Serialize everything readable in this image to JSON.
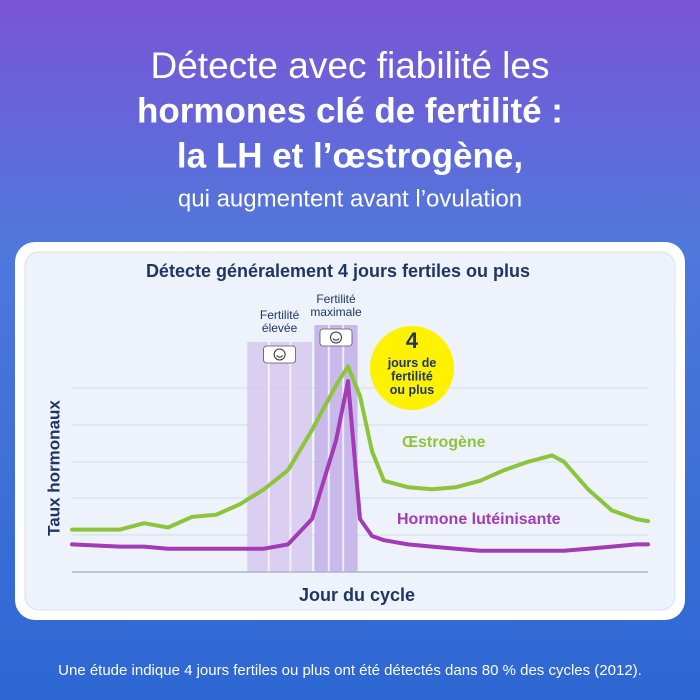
{
  "header": {
    "line1": "Détecte avec fiabilité les",
    "line2": "hormones clé de fertilité :",
    "line3": "la LH et l’œstrogène,",
    "line4": "qui augmentent avant l’ovulation"
  },
  "chart_data": {
    "type": "line",
    "title": "Détecte généralement 4 jours fertiles ou plus",
    "x_label": "Jour du cycle",
    "y_label": "Taux hormonaux",
    "x": [
      0,
      4,
      6,
      8,
      10,
      12,
      14,
      16,
      18,
      20,
      22,
      23,
      24,
      25,
      26,
      28,
      30,
      32,
      34,
      36,
      38,
      40,
      41,
      43,
      45,
      47,
      48
    ],
    "xlim": [
      0,
      48
    ],
    "ylim": [
      0,
      100
    ],
    "series": [
      {
        "name": "Œstrogène",
        "color": "#8cc43c",
        "values": [
          20,
          20,
          23,
          21,
          26,
          27,
          32,
          39,
          48,
          67,
          88,
          97,
          83,
          57,
          43,
          40,
          39,
          40,
          43,
          48,
          52,
          55,
          52,
          39,
          29,
          25,
          24
        ]
      },
      {
        "name": "Hormone lutéinisante",
        "color": "#a23bb5",
        "values": [
          13,
          12,
          12,
          11,
          11,
          11,
          11,
          11,
          13,
          25,
          62,
          90,
          25,
          17,
          15,
          13,
          12,
          11,
          10,
          10,
          10,
          10,
          10,
          11,
          12,
          13,
          13
        ]
      }
    ],
    "bands": [
      {
        "label": [
          "Fertilité",
          "élevée"
        ],
        "start": 14.6,
        "end": 20,
        "color": "#d6c8ee"
      },
      {
        "label": [
          "Fertilité",
          "maximale"
        ],
        "start": 20.2,
        "end": 23.8,
        "color": "#c1aee6"
      }
    ],
    "annotation": [
      "4",
      "jours de",
      "fertilité",
      "ou plus"
    ]
  },
  "footnote": "Une étude indique 4 jours fertiles ou plus ont été détectés dans 80 % des cycles (2012)."
}
